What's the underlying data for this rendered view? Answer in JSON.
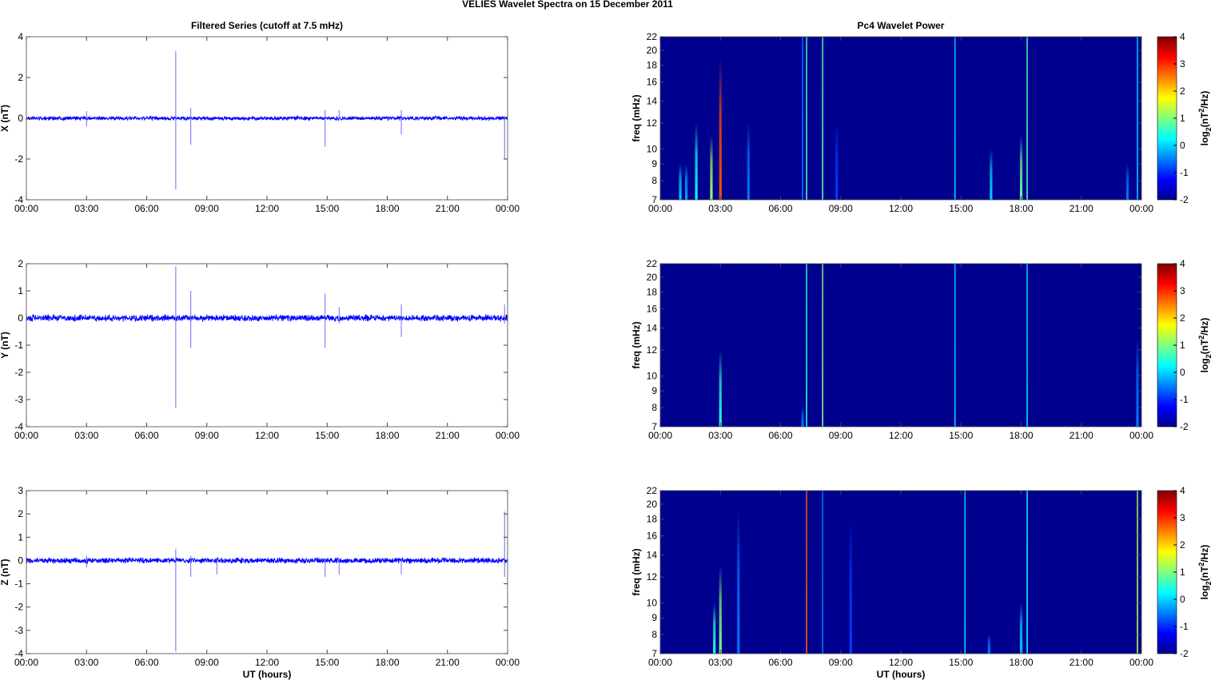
{
  "title": "VELIES Wavelet Spectra on 15 December  2011",
  "chart_data": [
    {
      "type": "line",
      "title": "Filtered Series (cutoff at 7.5 mHz)",
      "ylabel": "X (nT)",
      "xlabel": "",
      "ylim": [
        -4,
        4
      ],
      "yticks": [
        "-4",
        "-2",
        "0",
        "2",
        "4"
      ],
      "ytickvals": [
        -4,
        -2,
        0,
        2,
        4
      ],
      "xticks": [
        "00:00",
        "03:00",
        "06:00",
        "09:00",
        "12:00",
        "15:00",
        "18:00",
        "21:00",
        "00:00"
      ],
      "xlim_hours": [
        0,
        24
      ],
      "color": "#0000ff",
      "noise_amplitude": 0.08,
      "spikes": [
        [
          3.0,
          0.35,
          -0.4
        ],
        [
          7.45,
          3.3,
          -3.5
        ],
        [
          8.2,
          0.5,
          -1.3
        ],
        [
          14.9,
          0.4,
          -1.4
        ],
        [
          15.6,
          0.4,
          -0.1
        ],
        [
          18.7,
          0.4,
          -0.8
        ],
        [
          23.85,
          0.1,
          -2.0
        ]
      ]
    },
    {
      "type": "line",
      "title": "",
      "ylabel": "Y (nT)",
      "xlabel": "",
      "ylim": [
        -4,
        2
      ],
      "yticks": [
        "-4",
        "-3",
        "-2",
        "-1",
        "0",
        "1",
        "2"
      ],
      "ytickvals": [
        -4,
        -3,
        -2,
        -1,
        0,
        1,
        2
      ],
      "xticks": [
        "00:00",
        "03:00",
        "06:00",
        "09:00",
        "12:00",
        "15:00",
        "18:00",
        "21:00",
        "00:00"
      ],
      "xlim_hours": [
        0,
        24
      ],
      "color": "#0000ff",
      "noise_amplitude": 0.1,
      "spikes": [
        [
          7.45,
          1.9,
          -3.3
        ],
        [
          8.2,
          1.0,
          -1.1
        ],
        [
          14.9,
          0.9,
          -1.1
        ],
        [
          15.6,
          0.4,
          -0.2
        ],
        [
          18.7,
          0.5,
          -0.7
        ],
        [
          23.85,
          0.5,
          -0.2
        ]
      ]
    },
    {
      "type": "line",
      "title": "",
      "ylabel": "Z (nT)",
      "xlabel": "UT (hours)",
      "ylim": [
        -4,
        3
      ],
      "yticks": [
        "-4",
        "-3",
        "-2",
        "-1",
        "0",
        "1",
        "2",
        "3"
      ],
      "ytickvals": [
        -4,
        -3,
        -2,
        -1,
        0,
        1,
        2,
        3
      ],
      "xticks": [
        "00:00",
        "03:00",
        "06:00",
        "09:00",
        "12:00",
        "15:00",
        "18:00",
        "21:00",
        "00:00"
      ],
      "xlim_hours": [
        0,
        24
      ],
      "color": "#0000ff",
      "noise_amplitude": 0.1,
      "spikes": [
        [
          3.0,
          0.2,
          -0.3
        ],
        [
          7.45,
          0.5,
          -3.9
        ],
        [
          8.2,
          0.2,
          -0.7
        ],
        [
          9.5,
          0.1,
          -0.6
        ],
        [
          14.9,
          0.1,
          -0.7
        ],
        [
          15.6,
          0.1,
          -0.6
        ],
        [
          18.7,
          0.1,
          -0.6
        ],
        [
          23.85,
          2.1,
          -0.7
        ]
      ]
    },
    {
      "type": "heatmap",
      "title": "Pc4 Wavelet Power",
      "ylabel": "freq (mHz)",
      "xlabel": "",
      "ylim": [
        7,
        22
      ],
      "yscale": "log",
      "yticks": [
        "7",
        "8",
        "9",
        "10",
        "12",
        "14",
        "16",
        "18",
        "20",
        "22"
      ],
      "ytickvals": [
        7,
        8,
        9,
        10,
        12,
        14,
        16,
        18,
        20,
        22
      ],
      "xticks": [
        "00:00",
        "03:00",
        "06:00",
        "09:00",
        "12:00",
        "15:00",
        "18:00",
        "21:00",
        "00:00"
      ],
      "clim": [
        -2,
        4
      ],
      "colorbar_label": "log2(nT2/Hz)",
      "colorbar_ticks": [
        "-2",
        "-1",
        "0",
        "1",
        "2",
        "3",
        "4"
      ],
      "background_power": -2,
      "events": [
        [
          1.0,
          9,
          -0.6
        ],
        [
          1.3,
          9,
          -0.9
        ],
        [
          1.8,
          12,
          -0.2
        ],
        [
          2.55,
          11,
          0.8
        ],
        [
          3.0,
          19,
          2.6
        ],
        [
          4.4,
          12,
          -1.2
        ],
        [
          7.1,
          22,
          -1.2
        ],
        [
          7.3,
          22,
          0.3
        ],
        [
          8.1,
          22,
          0.3
        ],
        [
          8.8,
          12,
          -1.6
        ],
        [
          14.7,
          22,
          -0.6
        ],
        [
          16.5,
          10,
          -0.6
        ],
        [
          18.0,
          11,
          0.4
        ],
        [
          18.3,
          22,
          0.2
        ],
        [
          23.3,
          9,
          -1.2
        ],
        [
          23.8,
          22,
          -0.6
        ]
      ]
    },
    {
      "type": "heatmap",
      "title": "",
      "ylabel": "freq (mHz)",
      "xlabel": "",
      "ylim": [
        7,
        22
      ],
      "yscale": "log",
      "yticks": [
        "7",
        "8",
        "9",
        "10",
        "12",
        "14",
        "16",
        "18",
        "20",
        "22"
      ],
      "ytickvals": [
        7,
        8,
        9,
        10,
        12,
        14,
        16,
        18,
        20,
        22
      ],
      "xticks": [
        "00:00",
        "03:00",
        "06:00",
        "09:00",
        "12:00",
        "15:00",
        "18:00",
        "21:00",
        "00:00"
      ],
      "clim": [
        -2,
        4
      ],
      "colorbar_label": "log2(nT2/Hz)",
      "colorbar_ticks": [
        "-2",
        "-1",
        "0",
        "1",
        "2",
        "3",
        "4"
      ],
      "background_power": -2,
      "events": [
        [
          3.0,
          12,
          0.0
        ],
        [
          7.1,
          8,
          -1.2
        ],
        [
          7.3,
          22,
          0.0
        ],
        [
          8.1,
          22,
          0.6
        ],
        [
          14.7,
          22,
          -0.6
        ],
        [
          18.3,
          22,
          -0.5
        ],
        [
          23.8,
          13,
          -1.2
        ]
      ]
    },
    {
      "type": "heatmap",
      "title": "",
      "ylabel": "freq (mHz)",
      "xlabel": "UT (hours)",
      "ylim": [
        7,
        22
      ],
      "yscale": "log",
      "yticks": [
        "7",
        "8",
        "9",
        "10",
        "12",
        "14",
        "16",
        "18",
        "20",
        "22"
      ],
      "ytickvals": [
        7,
        8,
        9,
        10,
        12,
        14,
        16,
        18,
        20,
        22
      ],
      "xticks": [
        "00:00",
        "03:00",
        "06:00",
        "09:00",
        "12:00",
        "15:00",
        "18:00",
        "21:00",
        "00:00"
      ],
      "clim": [
        -2,
        4
      ],
      "colorbar_label": "log2(nT2/Hz)",
      "colorbar_ticks": [
        "-2",
        "-1",
        "0",
        "1",
        "2",
        "3",
        "4"
      ],
      "background_power": -2,
      "events": [
        [
          2.7,
          10,
          0.0
        ],
        [
          3.0,
          13,
          0.6
        ],
        [
          3.9,
          19,
          -1.2
        ],
        [
          7.3,
          22,
          2.5
        ],
        [
          8.1,
          22,
          -1.2
        ],
        [
          9.5,
          18,
          -1.6
        ],
        [
          15.2,
          22,
          -0.5
        ],
        [
          16.4,
          8,
          -1.2
        ],
        [
          18.0,
          10,
          -0.6
        ],
        [
          18.3,
          22,
          -0.2
        ],
        [
          23.8,
          22,
          1.0
        ]
      ]
    }
  ]
}
